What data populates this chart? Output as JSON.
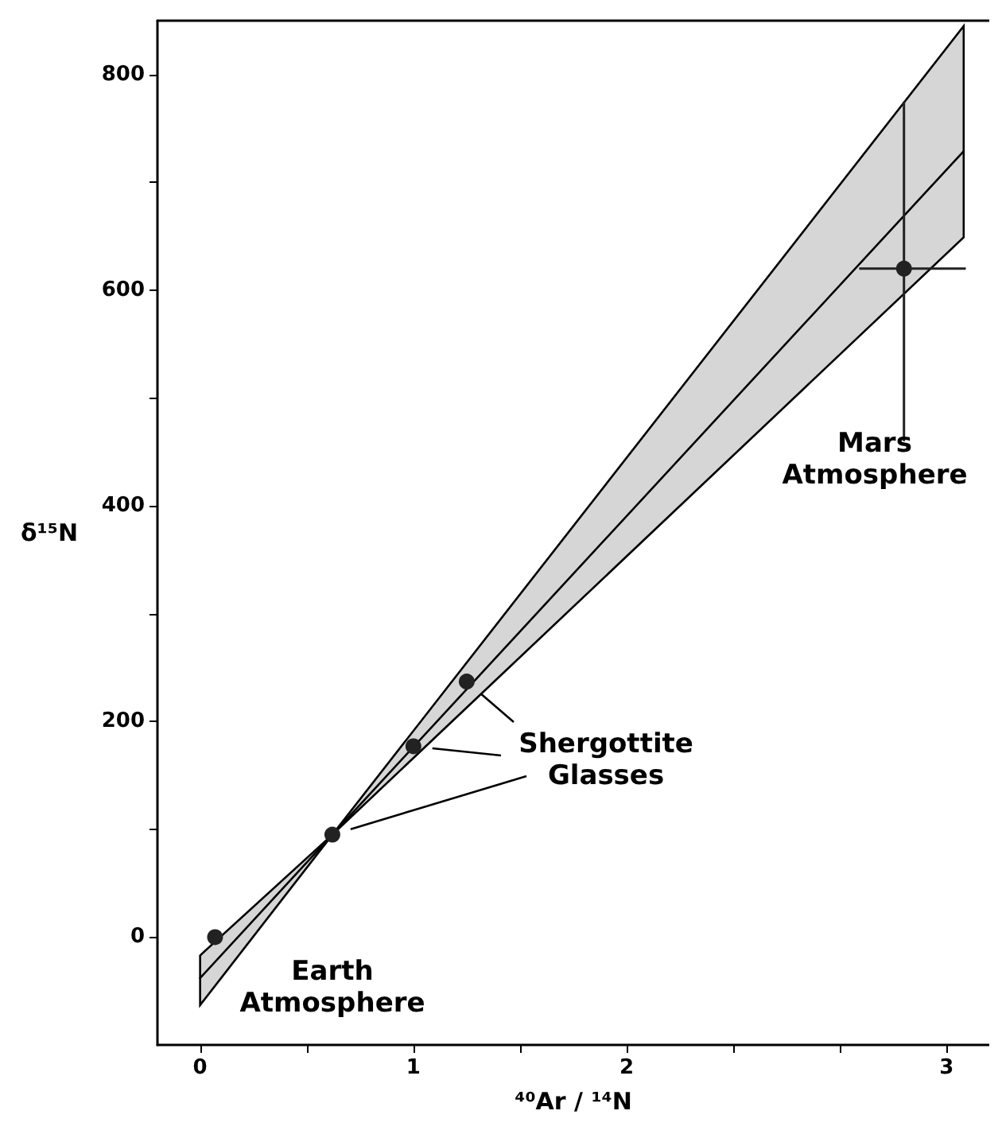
{
  "chart_data": {
    "type": "scatter",
    "xlabel": "⁴⁰Ar / ¹⁴N",
    "ylabel": "δ¹⁵N",
    "xlim": [
      -0.2,
      3.7
    ],
    "ylim": [
      -100,
      850
    ],
    "xticks": [
      0,
      {
        "value": 0.5,
        "label": null
      },
      1,
      {
        "value": 1.5,
        "label": null
      },
      2,
      {
        "value": 2.5,
        "label": null
      },
      {
        "value": 3,
        "label": null
      },
      {
        "value": 3.5,
        "label": "3"
      }
    ],
    "yticks": [
      0,
      {
        "value": 100,
        "label": null
      },
      200,
      {
        "value": 300,
        "label": null
      },
      400,
      {
        "value": 500,
        "label": null
      },
      600,
      {
        "value": 700,
        "label": null
      },
      800
    ],
    "series": [
      {
        "type": "line",
        "marker": "none",
        "color": "#000000",
        "x": [
          0,
          0.62,
          3.58
        ],
        "values": [
          -38,
          95,
          729
        ],
        "lower": [
          -63,
          95,
          649
        ],
        "upper": [
          -17,
          95,
          845
        ]
      },
      {
        "marker": "circle",
        "color": "#222222",
        "x": [
          0.07,
          0.62,
          1.0,
          1.25,
          3.3
        ],
        "values": [
          0,
          95,
          177,
          237,
          620
        ],
        "errors": [
          null,
          null,
          null,
          null,
          [
            460,
            775
          ]
        ],
        "xerrors": [
          null,
          null,
          null,
          null,
          [
            3.09,
            3.59
          ]
        ]
      }
    ],
    "annotations": [
      "Earth\nAtmosphere",
      {
        "text": "Shergottite\nGlasses",
        "x": 1.25,
        "y": 237
      },
      "Mars\nAtmosphere"
    ]
  }
}
